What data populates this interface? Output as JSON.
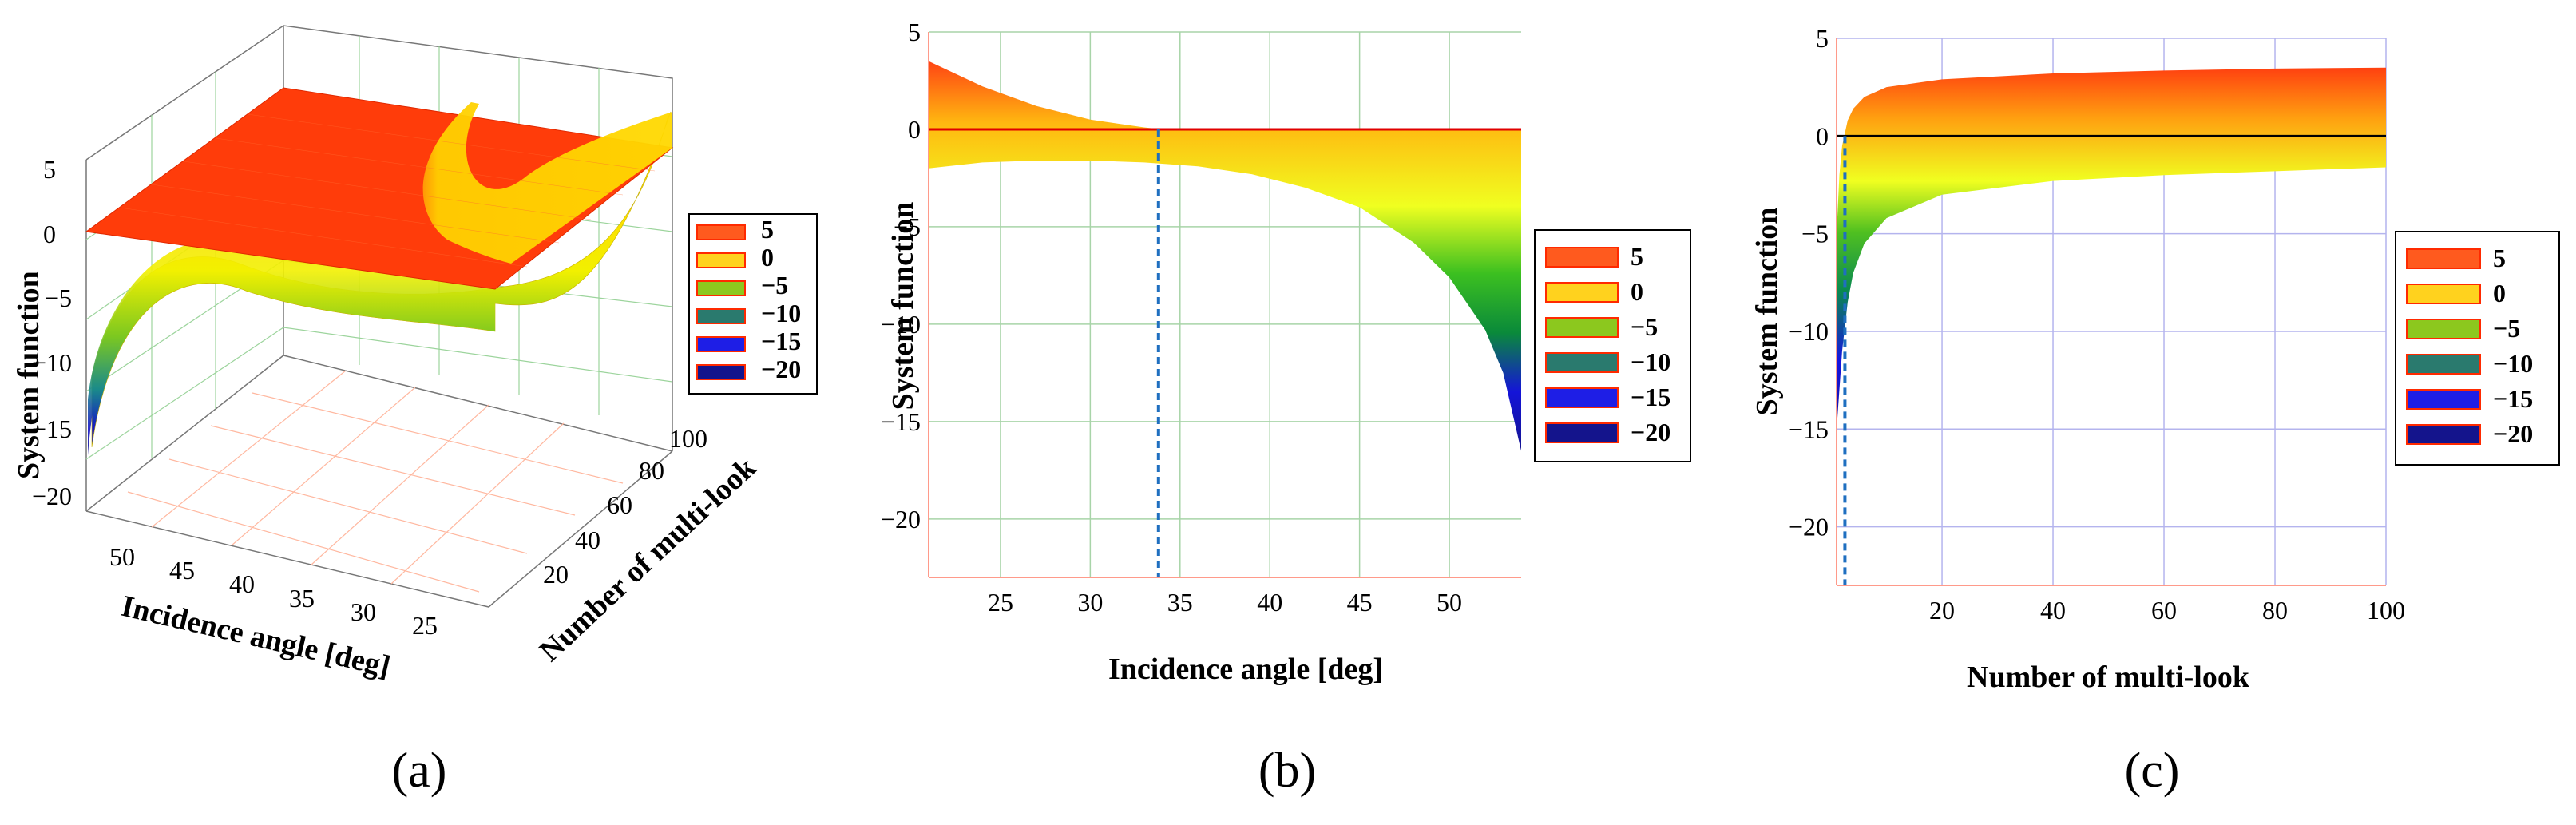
{
  "figure": {
    "caption_a": "(a)",
    "caption_b": "(b)",
    "caption_c": "(c)"
  },
  "legend": {
    "entries": [
      {
        "label": "5",
        "color": "#ff5a1e"
      },
      {
        "label": "0",
        "color": "#ffd21e"
      },
      {
        "label": "−5",
        "color": "#8cc81e"
      },
      {
        "label": "−10",
        "color": "#2a7a6e"
      },
      {
        "label": "−15",
        "color": "#1e1ee6"
      },
      {
        "label": "−20",
        "color": "#14148c"
      }
    ],
    "border_color": "#ff2a00"
  },
  "chart_data": [
    {
      "id": "a",
      "type": "surface",
      "xlabel": "Incidence angle [deg]",
      "ylabel": "Number of multi-look",
      "zlabel": "System function",
      "x_ticks": [
        "50",
        "45",
        "40",
        "35",
        "30",
        "25"
      ],
      "y_ticks": [
        "20",
        "40",
        "60",
        "80",
        "100"
      ],
      "z_ticks": [
        "5",
        "0",
        "−5",
        "−10",
        "−15",
        "−20"
      ],
      "x_range": [
        21,
        54
      ],
      "y_range": [
        1,
        100
      ],
      "z_range": [
        -22,
        6
      ],
      "series": [
        {
          "description": "plane z=0"
        },
        {
          "description": "system function surface"
        }
      ],
      "colors": {
        "plane": "#ff3a00",
        "surface_high": "#ffd400",
        "surface_low": "#1a1aa0"
      }
    },
    {
      "id": "b",
      "type": "area",
      "xlabel": "Incidence angle [deg]",
      "ylabel": "System function",
      "xlim": [
        21,
        54
      ],
      "ylim": [
        -23,
        5
      ],
      "x_ticks": [
        25,
        30,
        35,
        40,
        45,
        50
      ],
      "y_ticks": [
        5,
        0,
        -5,
        -10,
        -15,
        -20
      ],
      "x_tick_labels": [
        "25",
        "30",
        "35",
        "40",
        "45",
        "50"
      ],
      "y_tick_labels": [
        "5",
        "0",
        "−5",
        "−10",
        "−15",
        "−20"
      ],
      "band_upper": {
        "x": [
          21,
          24,
          27,
          30,
          33,
          34,
          38,
          42,
          46,
          50,
          52,
          54
        ],
        "y": [
          3.5,
          2.2,
          1.2,
          0.5,
          0.1,
          0.0,
          0.0,
          0.0,
          0.0,
          0.0,
          0.0,
          0.0
        ]
      },
      "band_lower": {
        "x": [
          21,
          24,
          27,
          30,
          33,
          36,
          39,
          42,
          45,
          48,
          50,
          52,
          53,
          54
        ],
        "y": [
          -2.0,
          -1.7,
          -1.6,
          -1.6,
          -1.7,
          -1.9,
          -2.3,
          -3.0,
          -4.0,
          -5.8,
          -7.6,
          -10.3,
          -12.5,
          -16.5
        ]
      },
      "reference_line_y": 0,
      "vline_x": 33.8,
      "grid": true,
      "grid_color": "#a8d4a8",
      "line_color": "#e00000",
      "vline_color": "#1f6fc0"
    },
    {
      "id": "c",
      "type": "area",
      "xlabel": "Number of multi-look",
      "ylabel": "System function",
      "xlim": [
        1,
        100
      ],
      "ylim": [
        -23,
        5
      ],
      "x_ticks": [
        20,
        40,
        60,
        80,
        100
      ],
      "y_ticks": [
        5,
        0,
        -5,
        -10,
        -15,
        -20
      ],
      "x_tick_labels": [
        "20",
        "40",
        "60",
        "80",
        "100"
      ],
      "y_tick_labels": [
        "5",
        "0",
        "−5",
        "−10",
        "−15",
        "−20"
      ],
      "band_upper": {
        "x": [
          1,
          1.5,
          2,
          3,
          4,
          6,
          10,
          20,
          40,
          60,
          80,
          100
        ],
        "y": [
          -5,
          -2,
          -0.5,
          0.8,
          1.4,
          2.0,
          2.5,
          2.9,
          3.2,
          3.35,
          3.45,
          3.5
        ]
      },
      "band_lower": {
        "x": [
          1,
          1.5,
          2,
          3,
          4,
          6,
          10,
          20,
          40,
          60,
          80,
          100
        ],
        "y": [
          -15,
          -13,
          -11,
          -8.5,
          -7,
          -5.5,
          -4.2,
          -3.0,
          -2.3,
          -2.0,
          -1.8,
          -1.6
        ]
      },
      "reference_line_y": 0,
      "vline_x": 2.5,
      "grid": true,
      "grid_color": "#b4b4ee",
      "line_color": "#000000",
      "vline_color": "#1f6fc0"
    }
  ]
}
